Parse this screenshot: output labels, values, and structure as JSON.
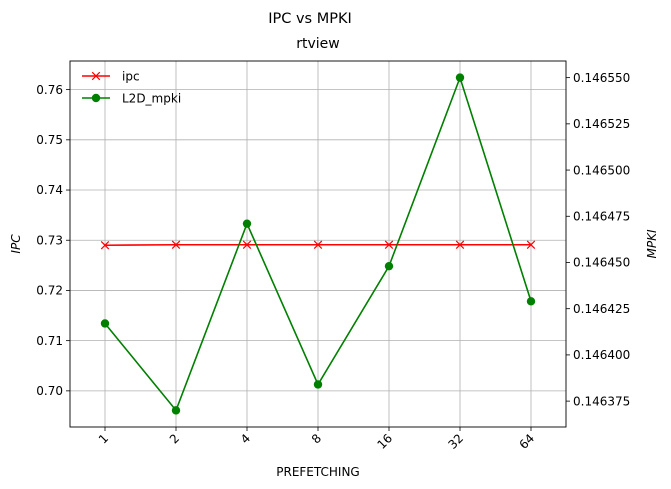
{
  "chart_data": {
    "type": "line",
    "suptitle": "IPC vs MPKI",
    "title": "rtview",
    "xlabel": "PREFETCHING",
    "ylabel_left": "IPC",
    "ylabel_right": "MPKI",
    "categories": [
      "1",
      "2",
      "4",
      "8",
      "16",
      "32",
      "64"
    ],
    "grid": true,
    "legend_position": "upper left",
    "y_left": {
      "lim": [
        0.6928,
        0.7657
      ],
      "ticks": [
        "0.70",
        "0.71",
        "0.72",
        "0.73",
        "0.74",
        "0.75",
        "0.76"
      ],
      "tick_values": [
        0.7,
        0.71,
        0.72,
        0.73,
        0.74,
        0.75,
        0.76
      ]
    },
    "y_right": {
      "lim": [
        0.146361,
        0.146559
      ],
      "ticks": [
        "0.146375",
        "0.146400",
        "0.146425",
        "0.146450",
        "0.146475",
        "0.146500",
        "0.146525",
        "0.146550"
      ],
      "tick_values": [
        0.146375,
        0.1464,
        0.146425,
        0.14645,
        0.146475,
        0.1465,
        0.146525,
        0.14655
      ]
    },
    "series": [
      {
        "name": "ipc",
        "axis": "left",
        "color": "#ff0000",
        "marker": "x",
        "values": [
          0.729,
          0.7291,
          0.7291,
          0.7291,
          0.7291,
          0.7291,
          0.7291
        ]
      },
      {
        "name": "L2D_mpki",
        "axis": "right",
        "color": "#008000",
        "marker": "circle",
        "values": [
          0.146417,
          0.14637,
          0.146471,
          0.146384,
          0.146448,
          0.14655,
          0.146429
        ]
      }
    ]
  }
}
